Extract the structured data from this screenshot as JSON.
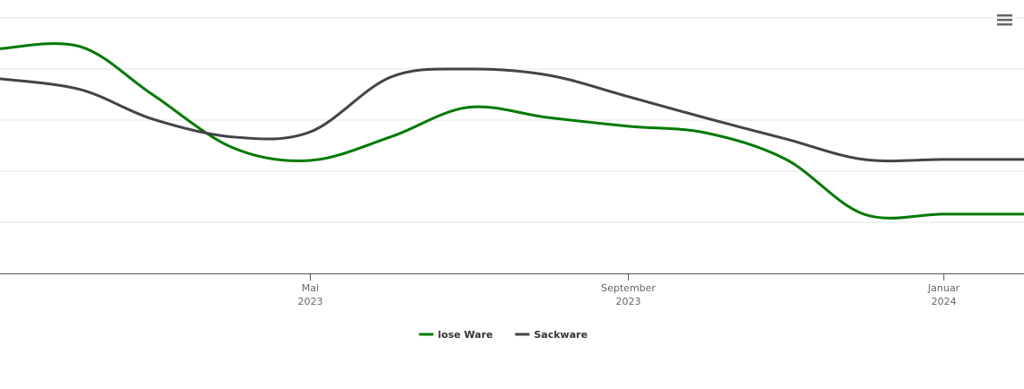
{
  "chart_data": {
    "type": "line",
    "x": [
      "2023-01",
      "2023-02",
      "2023-03",
      "2023-04",
      "2023-05",
      "2023-06",
      "2023-07",
      "2023-08",
      "2023-09",
      "2023-10",
      "2023-11",
      "2023-12",
      "2024-01",
      "2024-02"
    ],
    "series": [
      {
        "name": "lose Ware",
        "color": "#007a00",
        "values": [
          4.4,
          4.44,
          3.5,
          2.46,
          2.21,
          2.67,
          3.25,
          3.05,
          2.88,
          2.75,
          2.23,
          1.16,
          1.16,
          1.16
        ]
      },
      {
        "name": "Sackware",
        "color": "#434348",
        "values": [
          3.81,
          3.6,
          3.02,
          2.67,
          2.77,
          3.84,
          4.0,
          3.88,
          3.46,
          3.04,
          2.63,
          2.23,
          2.23,
          2.23
        ]
      }
    ],
    "xlim": [
      "2023-01",
      "2024-02"
    ],
    "xticks": [
      {
        "value": "2023-05",
        "label": [
          "Mai",
          "2023"
        ]
      },
      {
        "value": "2023-09",
        "label": [
          "September",
          "2023"
        ]
      },
      {
        "value": "2024-01",
        "label": [
          "Januar",
          "2024"
        ]
      }
    ],
    "ylim": [
      0,
      5
    ],
    "ygrid": [
      1,
      2,
      3,
      4,
      5
    ],
    "legend": "bottom"
  }
}
